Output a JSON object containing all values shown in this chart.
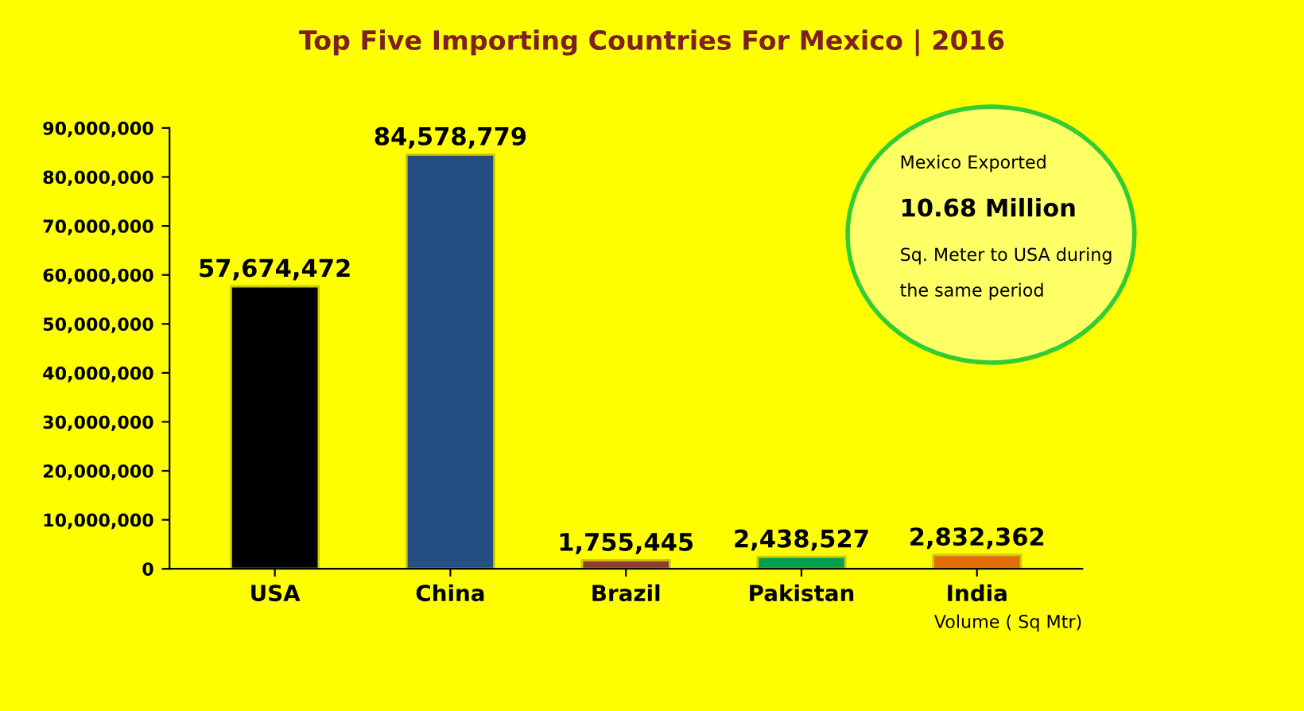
{
  "chart_data": {
    "type": "bar",
    "title": "Top Five Importing Countries For Mexico | 2016",
    "categories": [
      "USA",
      "China",
      "Brazil",
      "Pakistan",
      "India"
    ],
    "values": [
      57674472,
      84578779,
      1755445,
      2438527,
      2832362
    ],
    "colors": [
      "#000000",
      "#254e85",
      "#953735",
      "#00a050",
      "#e46c0a"
    ],
    "value_labels": [
      "57,674,472",
      "84,578,779",
      "1,755,445",
      "2,438,527",
      "2,832,362"
    ],
    "xlabel": "Volume ( Sq Mtr)",
    "ylim": [
      0,
      90000000
    ],
    "yticks": [
      0,
      {
        "value": 10000000,
        "label": "10,000,000"
      },
      {
        "value": 20000000,
        "label": "20,000,000"
      },
      {
        "value": 30000000,
        "label": "30,000,000"
      },
      {
        "value": 40000000,
        "label": "40,000,000"
      },
      {
        "value": 50000000,
        "label": "50,000,000"
      },
      {
        "value": 60000000,
        "label": "60,000,000"
      },
      {
        "value": 70000000,
        "label": "70,000,000"
      },
      {
        "value": 80000000,
        "label": "80,000,000"
      },
      {
        "value": 90000000,
        "label": "90,000,000"
      }
    ],
    "annotations": [
      "Mexico Exported",
      "10.68 Million",
      "Sq. Meter to USA during",
      "the same period"
    ],
    "grid": false
  }
}
